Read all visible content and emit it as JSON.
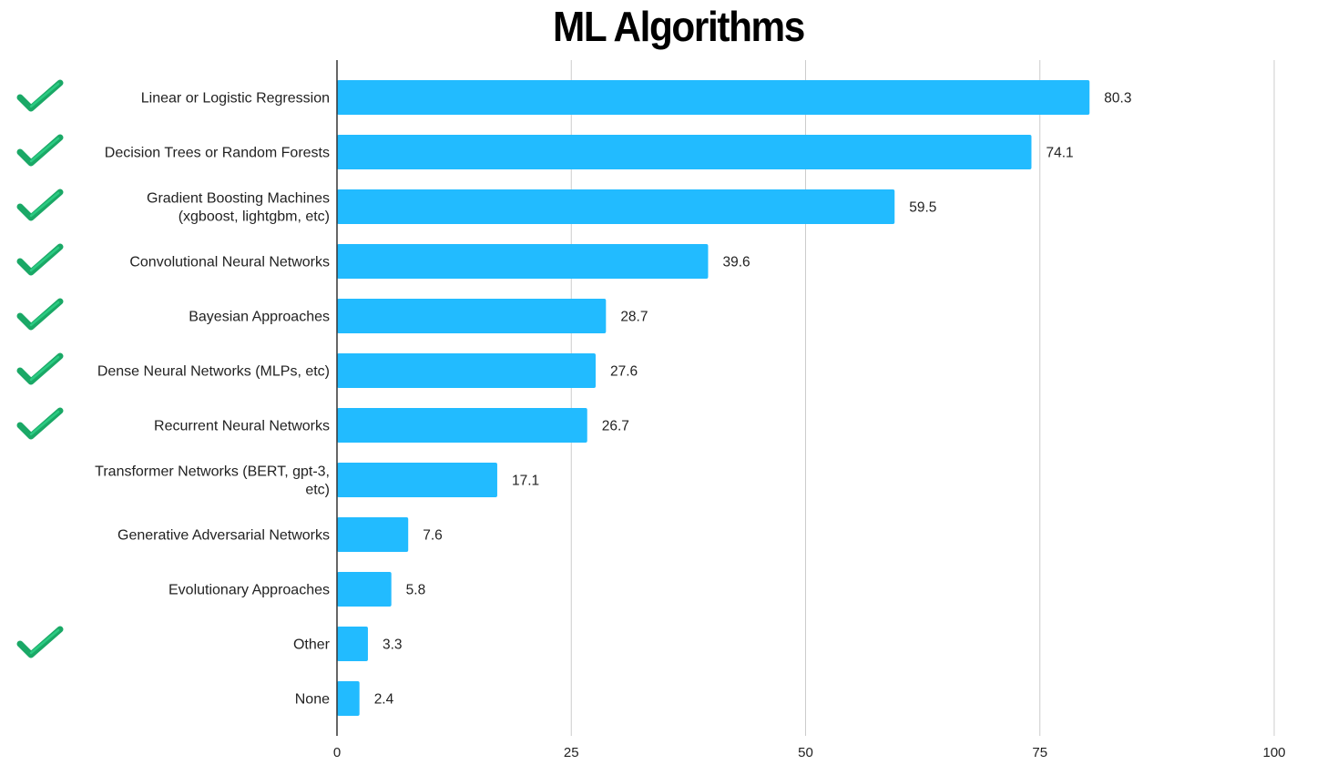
{
  "title": "ML Algorithms",
  "colors": {
    "bar": "#22bbff",
    "grid": "#cccccc",
    "axis": "#333333",
    "check": "#1aa866",
    "check_light": "#2fd38a"
  },
  "chart_data": {
    "type": "bar",
    "orientation": "horizontal",
    "title": "ML Algorithms",
    "xlim": [
      0,
      100
    ],
    "x_ticks": [
      0,
      25,
      50,
      75,
      100
    ],
    "grid": true,
    "categories": [
      [
        "Linear or Logistic Regression"
      ],
      [
        "Decision Trees or Random Forests"
      ],
      [
        "Gradient Boosting Machines",
        "(xgboost, lightgbm, etc)"
      ],
      [
        "Convolutional Neural Networks"
      ],
      [
        "Bayesian Approaches"
      ],
      [
        "Dense Neural Networks (MLPs, etc)"
      ],
      [
        "Recurrent Neural Networks"
      ],
      [
        "Transformer Networks (BERT, gpt-3,",
        "etc)"
      ],
      [
        "Generative Adversarial Networks"
      ],
      [
        "Evolutionary Approaches"
      ],
      [
        "Other"
      ],
      [
        "None"
      ]
    ],
    "values": [
      80.3,
      74.1,
      59.5,
      39.6,
      28.7,
      27.6,
      26.7,
      17.1,
      7.6,
      5.8,
      3.3,
      2.4
    ],
    "value_labels": [
      "80.3",
      "74.1",
      "59.5",
      "39.6",
      "28.7",
      "27.6",
      "26.7",
      "17.1",
      "7.6",
      "5.8",
      "3.3",
      "2.4"
    ],
    "checked": [
      true,
      true,
      true,
      true,
      true,
      true,
      true,
      false,
      false,
      false,
      true,
      false
    ]
  }
}
